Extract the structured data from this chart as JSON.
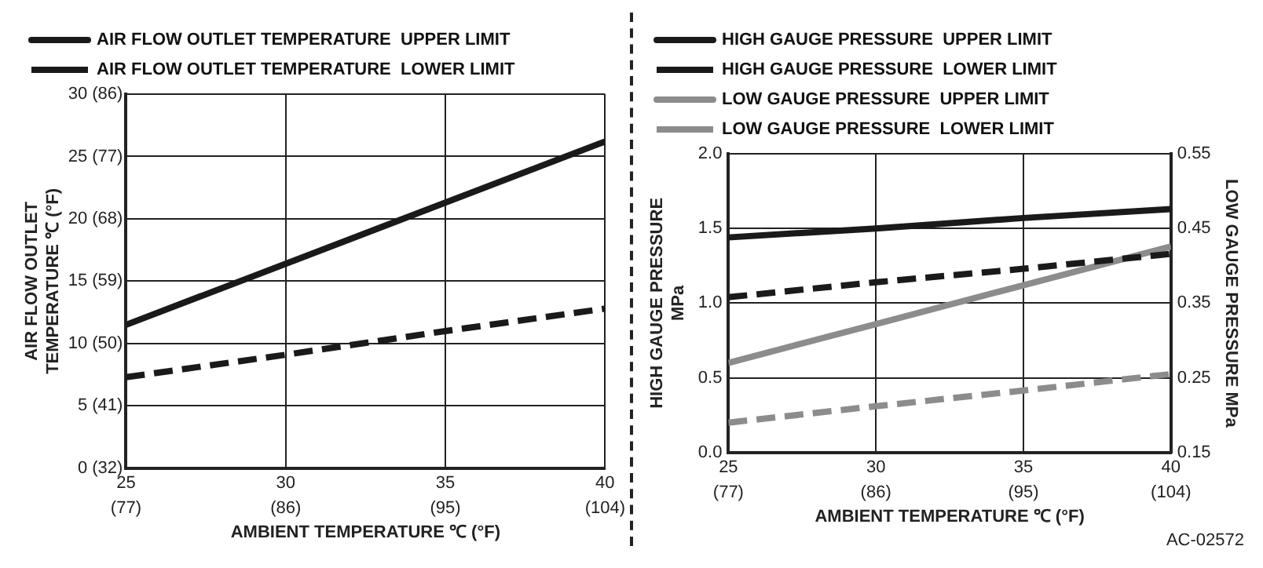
{
  "chart_data": [
    {
      "type": "line",
      "xlabel": "AMBIENT TEMPERATURE ℃ (°F)",
      "ylabel": "AIR FLOW OUTLET TEMPERATURE ℃ (°F)",
      "x": [
        25,
        30,
        35,
        40
      ],
      "series": [
        {
          "name": "AIR FLOW OUTLET TEMPERATURE  UPPER LIMIT",
          "color": "#1a1a1a",
          "line_style": "solid",
          "values": [
            11.5,
            16.4,
            21.3,
            26.2
          ]
        },
        {
          "name": "AIR FLOW OUTLET TEMPERATURE  LOWER LIMIT",
          "color": "#1a1a1a",
          "line_style": "dashed",
          "values": [
            7.3,
            9.1,
            11.0,
            12.8
          ]
        }
      ],
      "xlim": [
        25,
        40
      ],
      "xticks": [
        25,
        30,
        35,
        40
      ],
      "x2lim": [
        77,
        104
      ],
      "x2ticks": [
        {
          "value": 77,
          "label": "(77)"
        },
        {
          "value": 86,
          "label": "(86)"
        },
        {
          "value": 95,
          "label": "(95)"
        },
        {
          "value": 104,
          "label": "(104)"
        }
      ],
      "ylim": [
        0,
        30
      ],
      "yticks": [
        0,
        5,
        10,
        15,
        20,
        25,
        30
      ],
      "y2lim": [
        32,
        86
      ],
      "y2ticks": [
        {
          "value": 32,
          "label": "(32)"
        },
        {
          "value": 41,
          "label": "(41)"
        },
        {
          "value": 50,
          "label": "(50)"
        },
        {
          "value": 59,
          "label": "(59)"
        },
        {
          "value": 68,
          "label": "(68)"
        },
        {
          "value": 77,
          "label": "(77)"
        },
        {
          "value": 86,
          "label": "(86)"
        }
      ],
      "grid": true,
      "legend": "top",
      "marker": "none"
    },
    {
      "type": "line",
      "xlabel": "AMBIENT TEMPERATURE ℃ (°F)",
      "ylabel": "HIGH GAUGE PRESSURE MPa",
      "y2label": "LOW GAUGE PRESSURE MPa",
      "x": [
        25,
        30,
        35,
        40
      ],
      "series": [
        {
          "name": "HIGH GAUGE PRESSURE  UPPER LIMIT",
          "color": "#1a1a1a",
          "line_style": "solid",
          "values": [
            1.44,
            1.5,
            1.57,
            1.63
          ]
        },
        {
          "name": "HIGH GAUGE PRESSURE  LOWER LIMIT",
          "color": "#1a1a1a",
          "line_style": "dashed",
          "values": [
            1.04,
            1.14,
            1.23,
            1.33
          ]
        },
        {
          "name": "LOW GAUGE PRESSURE  UPPER LIMIT",
          "color": "#8c8c8c",
          "line_style": "solid",
          "axis": "y2",
          "values": [
            0.27,
            0.322,
            0.374,
            0.426
          ]
        },
        {
          "name": "LOW GAUGE PRESSURE  LOWER LIMIT",
          "color": "#8c8c8c",
          "line_style": "dashed",
          "axis": "y2",
          "values": [
            0.19,
            0.212,
            0.233,
            0.255
          ]
        }
      ],
      "xlim": [
        25,
        40
      ],
      "xticks": [
        25,
        30,
        35,
        40
      ],
      "x2lim": [
        77,
        104
      ],
      "x2ticks": [
        {
          "value": 77,
          "label": "(77)"
        },
        {
          "value": 86,
          "label": "(86)"
        },
        {
          "value": 95,
          "label": "(95)"
        },
        {
          "value": 104,
          "label": "(104)"
        }
      ],
      "ylim": [
        0,
        2
      ],
      "yticks": [
        {
          "value": 0,
          "label": "0.0"
        },
        {
          "value": 0.5,
          "label": "0.5"
        },
        {
          "value": 1,
          "label": "1.0"
        },
        {
          "value": 1.5,
          "label": "1.5"
        },
        {
          "value": 2,
          "label": "2.0"
        }
      ],
      "y2lim": [
        0.15,
        0.55
      ],
      "y2ticks": [
        0.15,
        0.25,
        0.35,
        0.45,
        0.55
      ],
      "grid": true,
      "legend": "top",
      "marker": "none",
      "annotations": [
        "AC-02572"
      ]
    }
  ]
}
